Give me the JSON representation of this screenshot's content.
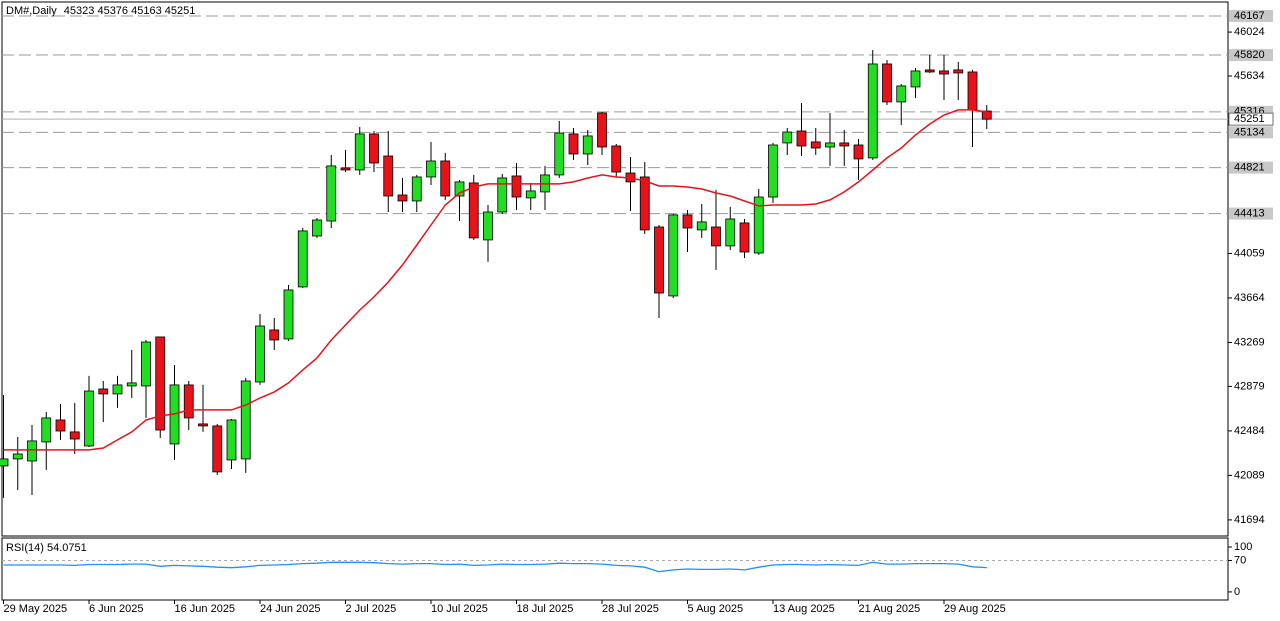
{
  "chart_data": {
    "type": "candlestick",
    "title": "DM#,Daily",
    "categories": [
      "29 May 2025",
      null,
      null,
      null,
      null,
      null,
      "6 Jun 2025",
      null,
      null,
      null,
      null,
      null,
      "16 Jun 2025",
      null,
      null,
      null,
      null,
      null,
      "24 Jun 2025",
      null,
      null,
      null,
      null,
      null,
      "2 Jul 2025",
      null,
      null,
      null,
      null,
      null,
      "10 Jul 2025",
      null,
      null,
      null,
      null,
      null,
      "18 Jul 2025",
      null,
      null,
      null,
      null,
      null,
      "28 Jul 2025",
      null,
      null,
      null,
      null,
      null,
      "5 Aug 2025",
      null,
      null,
      null,
      null,
      null,
      "13 Aug 2025",
      null,
      null,
      null,
      null,
      null,
      "21 Aug 2025",
      null,
      null,
      null,
      null,
      null,
      "29 Aug 2025",
      null,
      null,
      null
    ],
    "open": [
      42173,
      42235,
      42217,
      42386,
      42581,
      42475,
      42350,
      42856,
      42812,
      42883,
      42883,
      43318,
      42368,
      42892,
      42546,
      42528,
      42226,
      42235,
      42918,
      43380,
      43300,
      43762,
      44214,
      44347,
      44818,
      44800,
      45120,
      44924,
      44578,
      44525,
      44738,
      44880,
      44569,
      44685,
      44179,
      44427,
      44747,
      44552,
      44605,
      44756,
      45120,
      44942,
      45306,
      45013,
      44773,
      44738,
      44294,
      43682,
      44401,
      44268,
      44294,
      44126,
      44330,
      44063,
      44560,
      45040,
      45146,
      45049,
      45004,
      45040,
      45022,
      44907,
      45741,
      45404,
      45537,
      45688,
      45679,
      45688,
      45670,
      45323
    ],
    "high": [
      42803,
      42430,
      42537,
      42652,
      42723,
      42732,
      42972,
      42927,
      42972,
      43202,
      43291,
      43318,
      43069,
      42927,
      42892,
      42546,
      42590,
      42954,
      43522,
      43486,
      43779,
      44285,
      44374,
      44933,
      44978,
      45182,
      45146,
      45146,
      44729,
      44756,
      45049,
      44951,
      44711,
      44756,
      44489,
      44765,
      44862,
      44685,
      44836,
      45235,
      45173,
      45155,
      45315,
      45031,
      44915,
      44871,
      44312,
      44410,
      44445,
      44498,
      44623,
      44472,
      44365,
      44631,
      45040,
      45173,
      45395,
      45173,
      45306,
      45155,
      45075,
      45865,
      45776,
      45563,
      45705,
      45821,
      45821,
      45759,
      45688,
      45376
    ],
    "low": [
      41889,
      41960,
      41915,
      42137,
      42404,
      42279,
      42341,
      42563,
      42688,
      42776,
      42599,
      42421,
      42226,
      42492,
      42475,
      42093,
      42146,
      42111,
      42892,
      43202,
      43282,
      43753,
      44197,
      44285,
      44782,
      44756,
      44782,
      44427,
      44427,
      44427,
      44667,
      44534,
      44347,
      44179,
      43984,
      44410,
      44445,
      44445,
      44445,
      44729,
      44889,
      44844,
      44933,
      44738,
      44436,
      44232,
      43486,
      43664,
      44072,
      44197,
      43913,
      44090,
      44019,
      44046,
      44507,
      44933,
      44924,
      44933,
      44836,
      44836,
      44711,
      44889,
      45377,
      45199,
      45439,
      45661,
      45421,
      45421,
      45004,
      45163
    ],
    "close": [
      42235,
      42279,
      42395,
      42599,
      42483,
      42412,
      42838,
      42812,
      42892,
      42910,
      43273,
      42492,
      42892,
      42599,
      42528,
      42120,
      42581,
      42927,
      43415,
      43291,
      43735,
      44259,
      44356,
      44836,
      44800,
      45120,
      44862,
      44569,
      44525,
      44738,
      44880,
      44569,
      44694,
      44197,
      44427,
      44729,
      44560,
      44614,
      44756,
      45128,
      44942,
      45102,
      45004,
      44782,
      44694,
      44268,
      43708,
      44401,
      44285,
      44339,
      44126,
      44365,
      44072,
      44560,
      45022,
      45137,
      45013,
      44995,
      45040,
      45013,
      44898,
      45741,
      45404,
      45546,
      45679,
      45670,
      45652,
      45661,
      45333,
      45251
    ],
    "up_color": "#22dd22",
    "down_color": "#e8121b",
    "ylim": [
      41551,
      46291
    ],
    "yticks": [
      46024,
      45634,
      44059,
      43664,
      43269,
      42879,
      42484,
      42089,
      41694
    ],
    "levels": [
      46167,
      45820,
      45316,
      45134,
      44821,
      44413
    ],
    "ma": {
      "color": "#e8121b",
      "values": [
        42315,
        42315,
        42315,
        42315,
        42315,
        42315,
        42315,
        42332,
        42404,
        42475,
        42581,
        42617,
        42634,
        42670,
        42670,
        42670,
        42670,
        42714,
        42776,
        42830,
        42910,
        43025,
        43131,
        43291,
        43424,
        43557,
        43673,
        43806,
        43957,
        44134,
        44312,
        44489,
        44596,
        44649,
        44676,
        44676,
        44676,
        44676,
        44676,
        44676,
        44694,
        44729,
        44756,
        44738,
        44729,
        44703,
        44658,
        44658,
        44649,
        44631,
        44596,
        44569,
        44525,
        44481,
        44489,
        44489,
        44489,
        44498,
        44534,
        44605,
        44694,
        44800,
        44907,
        44995,
        45111,
        45208,
        45288,
        45333,
        45333,
        45315
      ]
    },
    "rsi": {
      "title": "RSI(14)",
      "color": "#1e90ff",
      "ylim": [
        -18,
        120
      ],
      "yticks": [
        100,
        70,
        0
      ],
      "level": 70,
      "values": [
        60,
        60,
        60,
        60,
        60,
        59,
        61,
        61,
        61,
        62,
        62,
        57,
        59,
        58,
        57,
        55,
        54,
        56,
        59,
        60,
        61,
        63,
        64,
        66,
        66,
        66,
        65,
        63,
        62,
        63,
        63,
        61,
        62,
        59,
        60,
        62,
        61,
        61,
        62,
        64,
        63,
        63,
        62,
        59,
        58,
        55,
        45,
        49,
        51,
        50,
        50,
        51,
        49,
        55,
        60,
        61,
        61,
        60,
        61,
        60,
        59,
        66,
        62,
        62,
        63,
        63,
        63,
        62,
        56,
        54.0751
      ]
    }
  }
}
